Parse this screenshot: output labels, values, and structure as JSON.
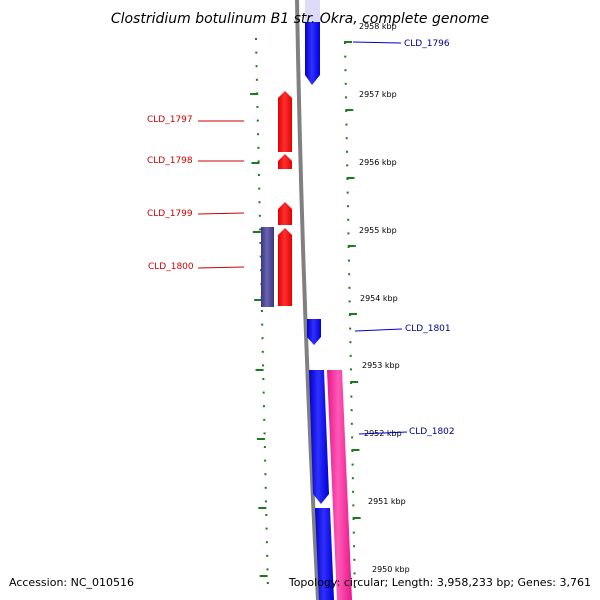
{
  "title": "Clostridium botulinum B1 str. Okra, complete genome",
  "footer": {
    "accession": "Accession: NC_010516",
    "summary": "Topology: circular; Length: 3,958,233 bp; Genes: 3,761"
  },
  "ticks": [
    "2958 kbp",
    "2957 kbp",
    "2956 kbp",
    "2955 kbp",
    "2954 kbp",
    "2953 kbp",
    "2952 kbp",
    "2951 kbp",
    "2950 kbp"
  ],
  "genes": [
    {
      "id": "CLD_1796",
      "strand": "forward"
    },
    {
      "id": "CLD_1797",
      "strand": "reverse"
    },
    {
      "id": "CLD_1798",
      "strand": "reverse"
    },
    {
      "id": "CLD_1799",
      "strand": "reverse"
    },
    {
      "id": "CLD_1800",
      "strand": "reverse"
    },
    {
      "id": "CLD_1801",
      "strand": "forward"
    },
    {
      "id": "CLD_1802",
      "strand": "forward"
    }
  ],
  "colors": {
    "forward_gene": "#0000ff",
    "reverse_gene": "#ff0000",
    "reverse_feature": "#4a4590",
    "forward_feature": "#ff2a9c",
    "backbone": "#808080",
    "gc_dots": "#1e7a1e",
    "forward_label": "#00008b",
    "reverse_label": "#cc0000"
  }
}
